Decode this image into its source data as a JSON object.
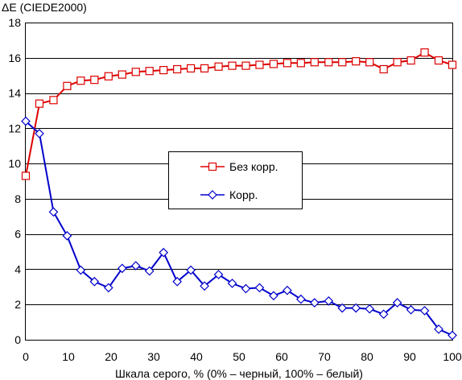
{
  "chart_data": {
    "type": "line",
    "ylabel": "ΔE (CIEDE2000)",
    "xlabel": "Шкала серого, % (0% – черный, 100% – белый)",
    "xlim": [
      0,
      100
    ],
    "ylim": [
      0,
      18
    ],
    "x_ticks": [
      0,
      10,
      20,
      30,
      40,
      50,
      60,
      70,
      80,
      90,
      100
    ],
    "y_ticks": [
      0,
      2,
      4,
      6,
      8,
      10,
      12,
      14,
      16,
      18
    ],
    "grid": "horizontal",
    "legend_position": "center-right",
    "x": [
      0,
      3.2,
      6.5,
      9.7,
      12.9,
      16.1,
      19.4,
      22.6,
      25.8,
      29,
      32.3,
      35.5,
      38.7,
      41.9,
      45.2,
      48.4,
      51.6,
      54.8,
      58.1,
      61.3,
      64.5,
      67.7,
      71,
      74.2,
      77.4,
      80.6,
      83.9,
      87.1,
      90.3,
      93.5,
      96.8,
      100
    ],
    "series": [
      {
        "name": "Без корр.",
        "color": "#dd0000",
        "marker": "square",
        "values": [
          9.3,
          13.4,
          13.6,
          14.4,
          14.7,
          14.75,
          14.95,
          15.05,
          15.2,
          15.25,
          15.3,
          15.35,
          15.4,
          15.4,
          15.5,
          15.55,
          15.55,
          15.6,
          15.65,
          15.7,
          15.7,
          15.75,
          15.75,
          15.75,
          15.8,
          15.75,
          15.35,
          15.75,
          15.85,
          16.3,
          15.85,
          15.6
        ]
      },
      {
        "name": "Корр.",
        "color": "#0000cc",
        "marker": "diamond",
        "values": [
          12.4,
          11.7,
          7.25,
          5.9,
          3.95,
          3.3,
          2.95,
          4.05,
          4.2,
          3.9,
          4.95,
          3.3,
          3.95,
          3.05,
          3.7,
          3.2,
          2.9,
          2.95,
          2.5,
          2.8,
          2.3,
          2.1,
          2.2,
          1.8,
          1.8,
          1.75,
          1.45,
          2.1,
          1.7,
          1.65,
          0.6,
          0.25
        ]
      }
    ]
  }
}
